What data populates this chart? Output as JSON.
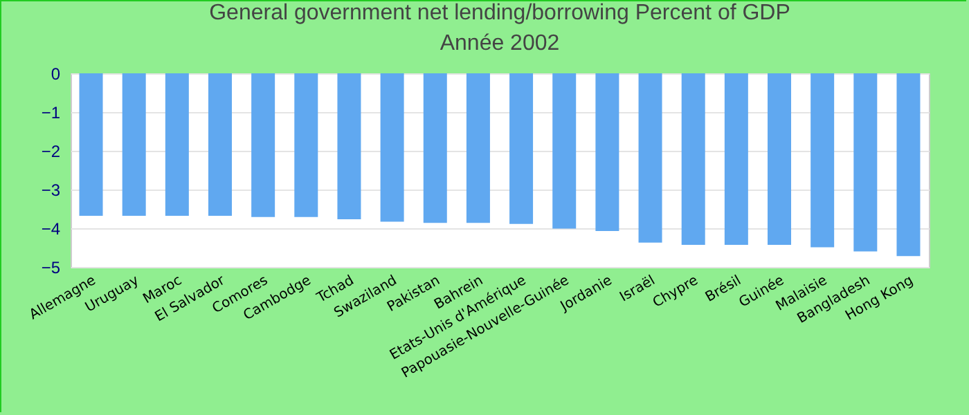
{
  "chart_data": {
    "type": "bar",
    "title": "General government net lending/borrowing  Percent of GDP",
    "subtitle": "Année 2002",
    "categories": [
      "Allemagne",
      "Uruguay",
      "Maroc",
      "El Salvador",
      "Comores",
      "Cambodge",
      "Tchad",
      "Swaziland",
      "Pakistan",
      "Bahrein",
      "Etats-Unis d'Amérique",
      "Papouasie-Nouvelle-Guinée",
      "Jordanie",
      "Israël",
      "Chypre",
      "Brésil",
      "Guinée",
      "Malaisie",
      "Bangladesh",
      "Hong Kong"
    ],
    "values": [
      -3.68,
      -3.68,
      -3.68,
      -3.68,
      -3.71,
      -3.71,
      -3.77,
      -3.83,
      -3.86,
      -3.86,
      -3.89,
      -4.01,
      -4.07,
      -4.37,
      -4.43,
      -4.43,
      -4.43,
      -4.49,
      -4.6,
      -4.72
    ],
    "color": "#60a8f0",
    "ylim": [
      -5,
      0
    ],
    "yticks": [
      -5,
      -4,
      -3,
      -2,
      -1,
      0
    ],
    "grid": true
  }
}
